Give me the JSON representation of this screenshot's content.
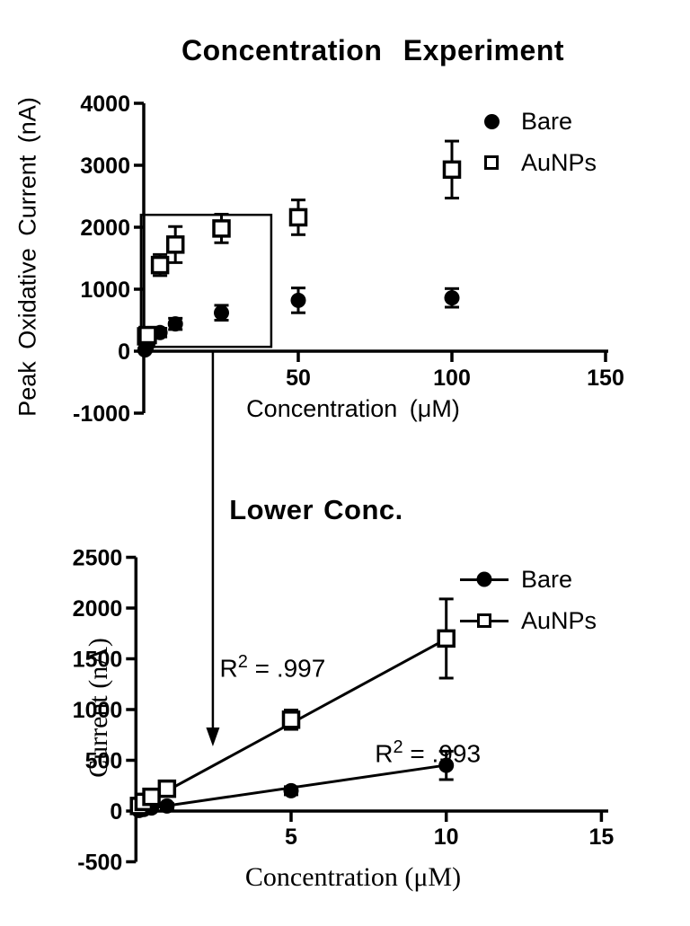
{
  "figure_background": "#ffffff",
  "ink_color": "#000000",
  "connector": {
    "description": "zoom-inset arrow linking boxed low-concentration region of the top chart to the bottom chart",
    "arrow_x_um": 22.2
  },
  "chart_data": [
    {
      "type": "scatter",
      "title": "Concentration Experiment",
      "xlabel": "Concentration (μM)",
      "ylabel": "Peak Oxidative Current (nA)",
      "xlim": [
        0,
        151
      ],
      "ylim": [
        -1000,
        4000
      ],
      "xticks": [
        50,
        100,
        150
      ],
      "yticks": [
        -1000,
        0,
        1000,
        2000,
        3000,
        4000
      ],
      "grid": false,
      "error_bars": true,
      "legend_position": "top-right-inside",
      "inset_box": {
        "x0": -1.2,
        "x1": 41.2,
        "y0": 70,
        "y1": 2200
      },
      "series": [
        {
          "name": "Bare",
          "marker": "filled-circle",
          "line": false,
          "x": [
            0.1,
            0.5,
            1,
            5,
            10,
            25,
            50,
            100
          ],
          "y": [
            20,
            60,
            130,
            300,
            440,
            620,
            820,
            860
          ],
          "yerr": [
            30,
            40,
            60,
            70,
            90,
            120,
            200,
            150
          ]
        },
        {
          "name": "AuNPs",
          "marker": "open-square",
          "line": false,
          "x": [
            0.5,
            1,
            5,
            10,
            25,
            50,
            100
          ],
          "y": [
            240,
            260,
            1390,
            1720,
            1980,
            2160,
            2930
          ],
          "yerr": [
            60,
            80,
            170,
            290,
            230,
            280,
            460
          ]
        }
      ]
    },
    {
      "type": "scatter",
      "title": "Lower Conc.",
      "xlabel": "Concentration (μM)",
      "ylabel": "Current (nA)",
      "xlim": [
        0,
        15.2
      ],
      "ylim": [
        -500,
        2500
      ],
      "xticks": [
        5,
        10,
        15
      ],
      "yticks": [
        -500,
        0,
        500,
        1000,
        1500,
        2000,
        2500
      ],
      "grid": false,
      "error_bars": true,
      "legend_position": "top-right-inside",
      "series": [
        {
          "name": "Bare",
          "marker": "filled-circle",
          "line": true,
          "x": [
            0.1,
            0.25,
            0.5,
            1,
            5,
            10
          ],
          "y": [
            5,
            15,
            30,
            50,
            200,
            450
          ],
          "yerr": [
            15,
            15,
            20,
            25,
            40,
            140
          ],
          "fit": {
            "r2": ".993",
            "x0": 0.1,
            "y0": 12,
            "x1": 10,
            "y1": 452
          }
        },
        {
          "name": "AuNPs",
          "marker": "open-square",
          "line": true,
          "x": [
            0.1,
            0.25,
            0.5,
            1,
            5,
            10
          ],
          "y": [
            50,
            90,
            140,
            220,
            900,
            1700
          ],
          "yerr": [
            25,
            30,
            40,
            50,
            95,
            390
          ],
          "fit": {
            "r2": ".997",
            "x0": 0.1,
            "y0": 50,
            "x1": 10,
            "y1": 1695
          }
        }
      ],
      "annotations": [
        {
          "base": "R",
          "sup": "2",
          "rest": " = .997",
          "x": 2.7,
          "y": 1340
        },
        {
          "base": "R",
          "sup": "2",
          "rest": " = .993",
          "x": 7.7,
          "y": 495
        }
      ]
    }
  ]
}
